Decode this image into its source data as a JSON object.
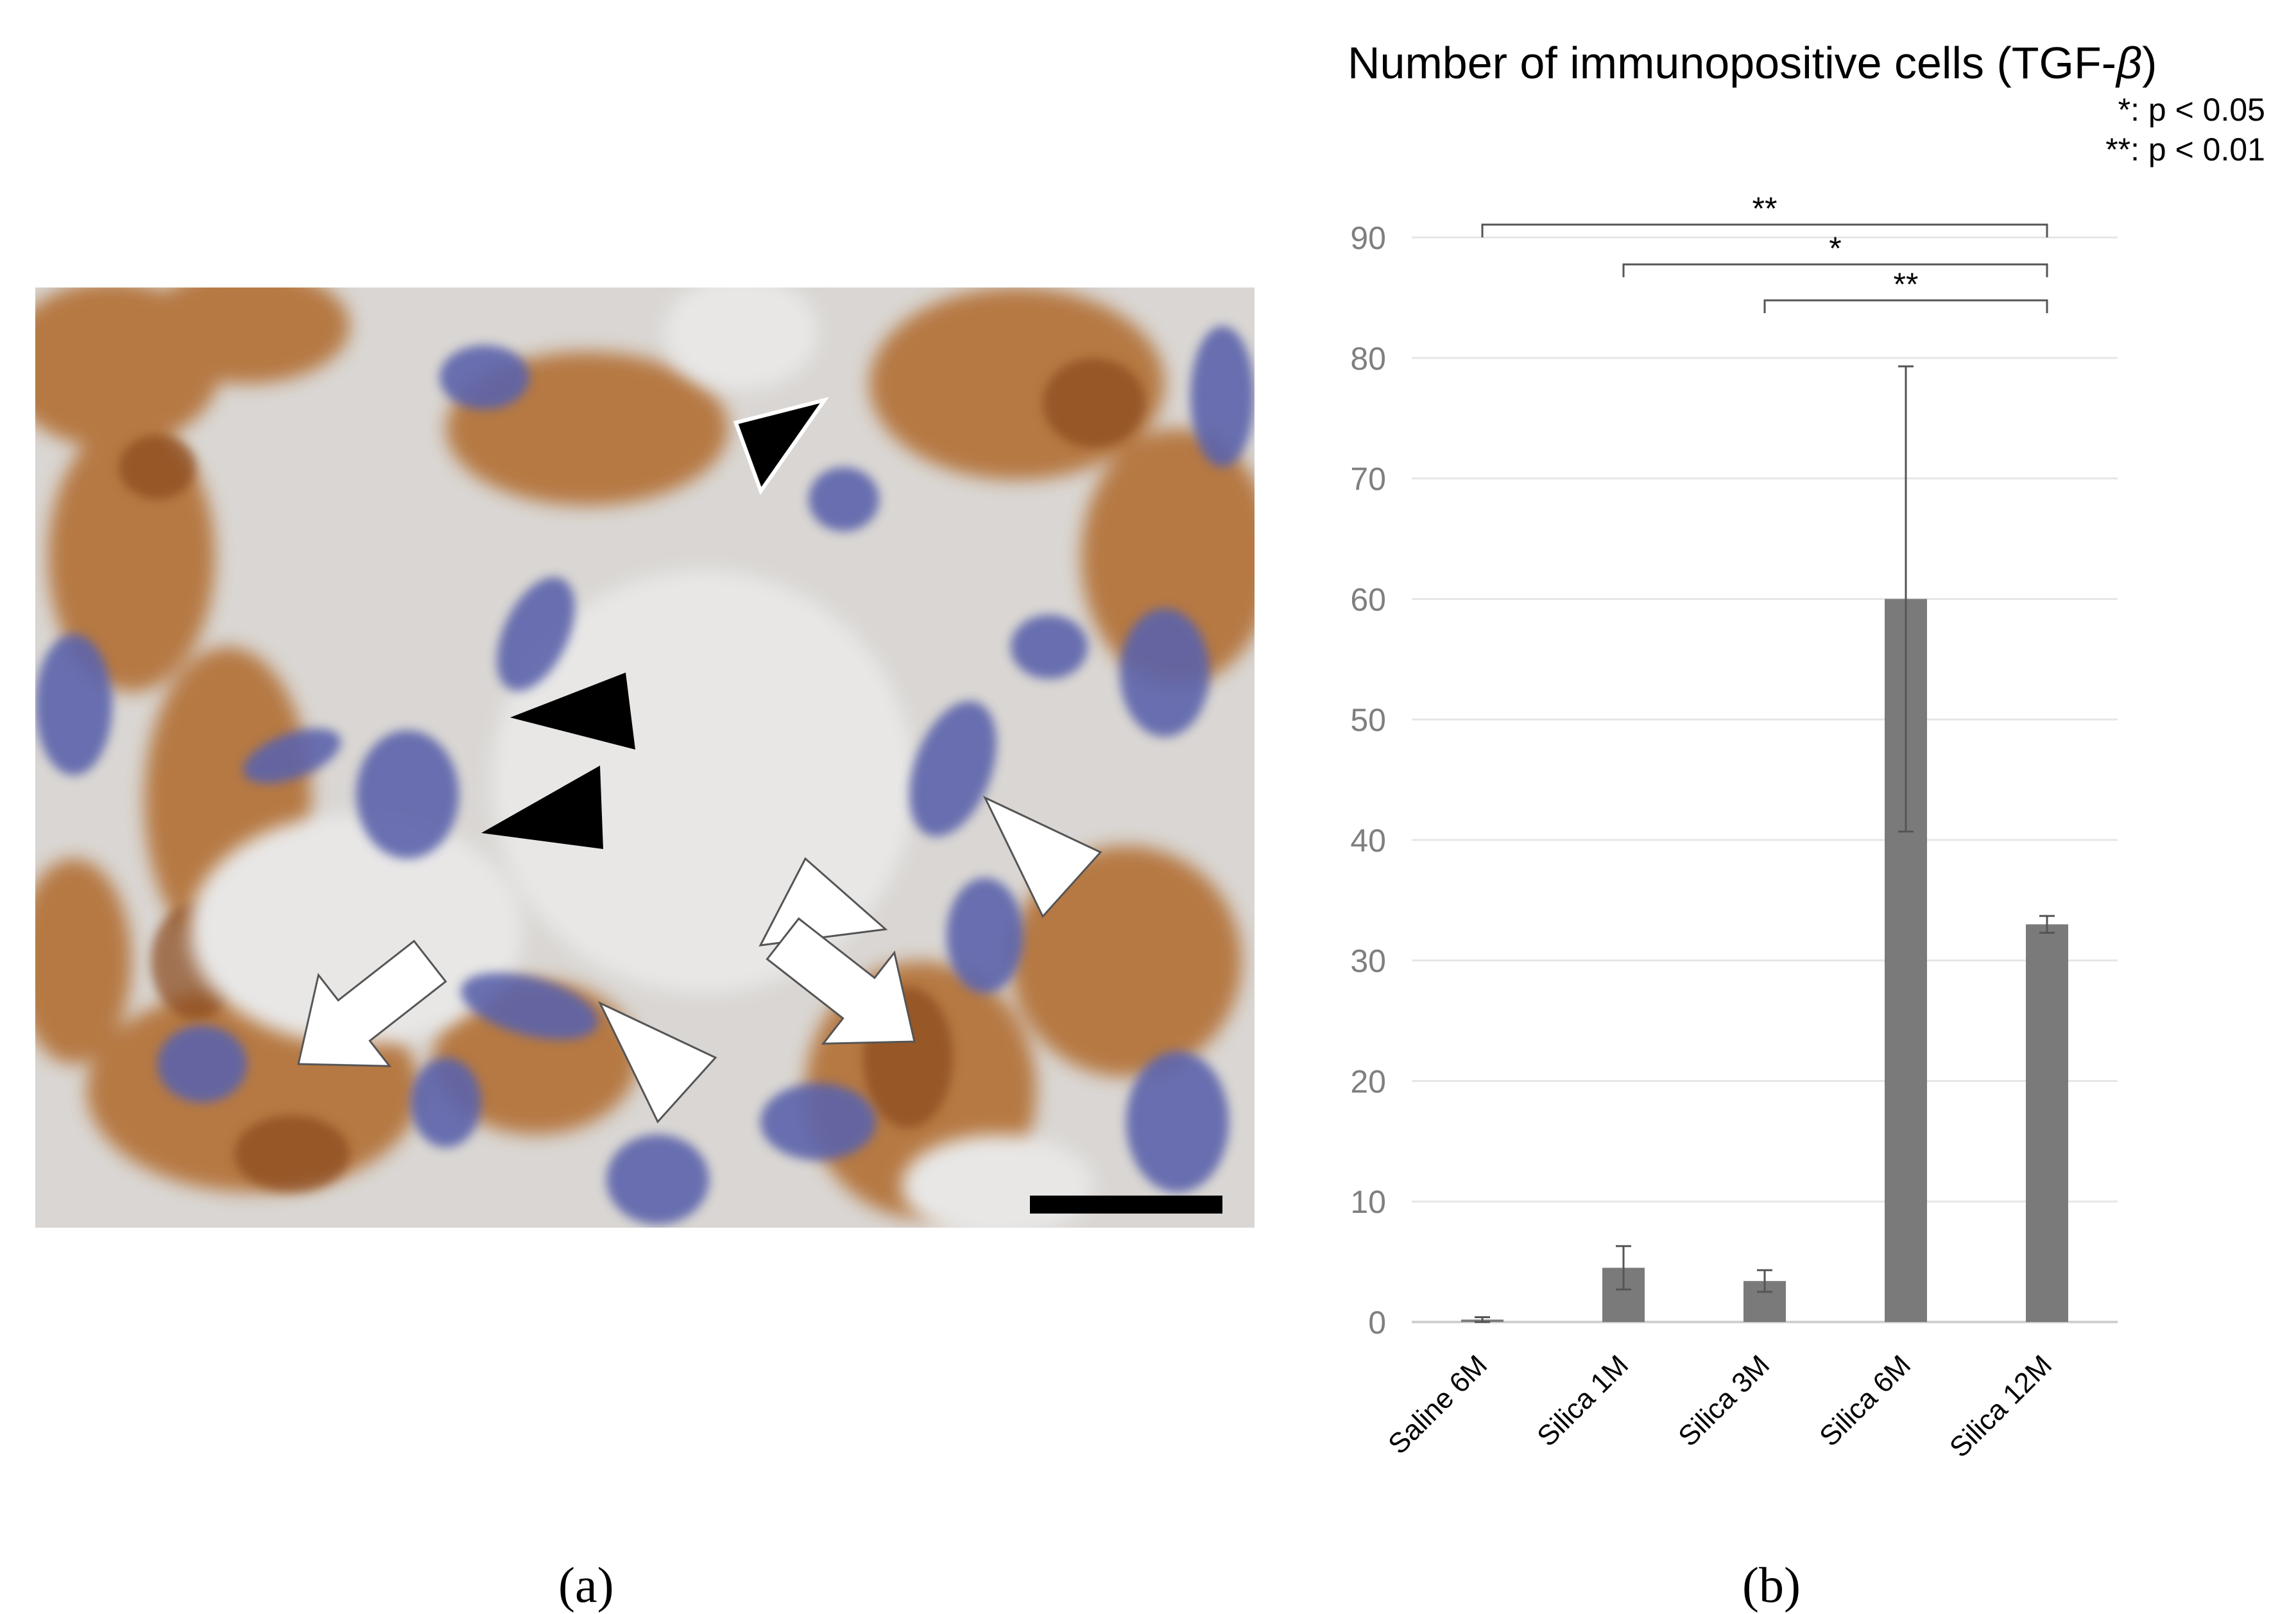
{
  "panels": {
    "a": "(a)",
    "b": "(b)"
  },
  "micrograph": {
    "description_items": [
      "black-arrowhead",
      "white-arrowhead",
      "white-arrow",
      "scale-bar"
    ],
    "colors": {
      "stain_brown": "#b5702f",
      "nucleus_blue": "#5a62a8",
      "background": "#dcd9d6"
    }
  },
  "chart_data": {
    "type": "bar",
    "title": "Number of immunopositive cells (TGF-",
    "title_greek": "β",
    "title_close": ")",
    "legend_notes": [
      "*: p < 0.05",
      "**: p < 0.01"
    ],
    "categories": [
      "Saline 6M",
      "Silica 1M",
      "Silica 3M",
      "Silica 6M",
      "Silica 12M"
    ],
    "values": [
      0.2,
      4.5,
      3.4,
      60.0,
      33.0
    ],
    "error": [
      0.2,
      1.8,
      0.9,
      19.3,
      0.7
    ],
    "ylim": [
      0,
      90
    ],
    "yticks": [
      0,
      10,
      20,
      30,
      40,
      50,
      60,
      70,
      80,
      90
    ],
    "grid": true,
    "bar_color": "#7a7a7a",
    "significance": [
      {
        "from": "Saline 6M",
        "to": "Silica 12M",
        "label": "**"
      },
      {
        "from": "Silica 1M",
        "to": "Silica 12M",
        "label": "*"
      },
      {
        "from": "Silica 3M",
        "to": "Silica 12M",
        "label": "**"
      }
    ]
  }
}
